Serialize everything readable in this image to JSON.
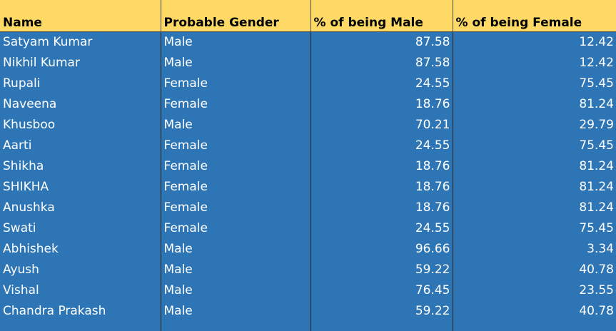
{
  "headers": [
    "Name",
    "Probable Gender",
    "% of being Male",
    "% of being Female"
  ],
  "rows": [
    {
      "name": "Satyam Kumar",
      "gender": "Male",
      "male": "87.58",
      "female": "12.42"
    },
    {
      "name": "Nikhil Kumar",
      "gender": "Male",
      "male": "87.58",
      "female": "12.42"
    },
    {
      "name": "Rupali",
      "gender": "Female",
      "male": "24.55",
      "female": "75.45"
    },
    {
      "name": "Naveena",
      "gender": "Female",
      "male": "18.76",
      "female": "81.24"
    },
    {
      "name": "Khusboo",
      "gender": "Male",
      "male": "70.21",
      "female": "29.79"
    },
    {
      "name": "Aarti",
      "gender": "Female",
      "male": "24.55",
      "female": "75.45"
    },
    {
      "name": "Shikha",
      "gender": "Female",
      "male": "18.76",
      "female": "81.24"
    },
    {
      "name": "SHIKHA",
      "gender": "Female",
      "male": "18.76",
      "female": "81.24"
    },
    {
      "name": "Anushka",
      "gender": "Female",
      "male": "18.76",
      "female": "81.24"
    },
    {
      "name": "Swati",
      "gender": "Female",
      "male": "24.55",
      "female": "75.45"
    },
    {
      "name": "Abhishek",
      "gender": "Male",
      "male": "96.66",
      "female": "3.34"
    },
    {
      "name": "Ayush",
      "gender": "Male",
      "male": "59.22",
      "female": "40.78"
    },
    {
      "name": "Vishal",
      "gender": "Male",
      "male": "76.45",
      "female": "23.55"
    },
    {
      "name": "Chandra Prakash",
      "gender": "Male",
      "male": "59.22",
      "female": "40.78"
    }
  ],
  "colors": {
    "header_bg": "#ffd966",
    "body_bg": "#2e75b6",
    "body_text": "#ffffff"
  }
}
